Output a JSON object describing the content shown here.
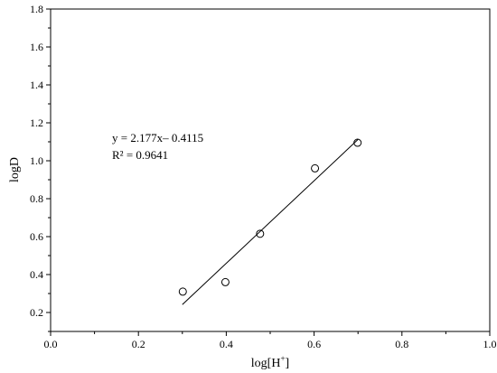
{
  "chart_data": {
    "type": "scatter",
    "xlabel": "log[H",
    "xlabel_superscript": "+",
    "xlabel_suffix": "]",
    "ylabel": "logD",
    "xlim": [
      0.0,
      1.0
    ],
    "ylim": [
      0.1,
      1.8
    ],
    "xticks": [
      0.0,
      0.2,
      0.4,
      0.6,
      0.8,
      1.0
    ],
    "xtick_labels": [
      "0.0",
      "0.2",
      "0.4",
      "0.6",
      "0.8",
      "1.0"
    ],
    "yticks": [
      0.2,
      0.4,
      0.6,
      0.8,
      1.0,
      1.2,
      1.4,
      1.6,
      1.8
    ],
    "ytick_labels": [
      "0.2",
      "0.4",
      "0.6",
      "0.8",
      "1.0",
      "1.2",
      "1.4",
      "1.6",
      "1.8"
    ],
    "grid": false,
    "legend": "none",
    "marker": "open-circle",
    "series": [
      {
        "x": [
          0.301,
          0.398,
          0.477,
          0.602,
          0.699
        ],
        "y": [
          0.31,
          0.36,
          0.615,
          0.96,
          1.095
        ]
      }
    ],
    "fit_line": {
      "slope": 2.177,
      "intercept": -0.4115,
      "x_range": [
        0.3,
        0.7
      ]
    },
    "annotations": [
      "y = 2.177x– 0.4115",
      "R² = 0.9641"
    ]
  }
}
